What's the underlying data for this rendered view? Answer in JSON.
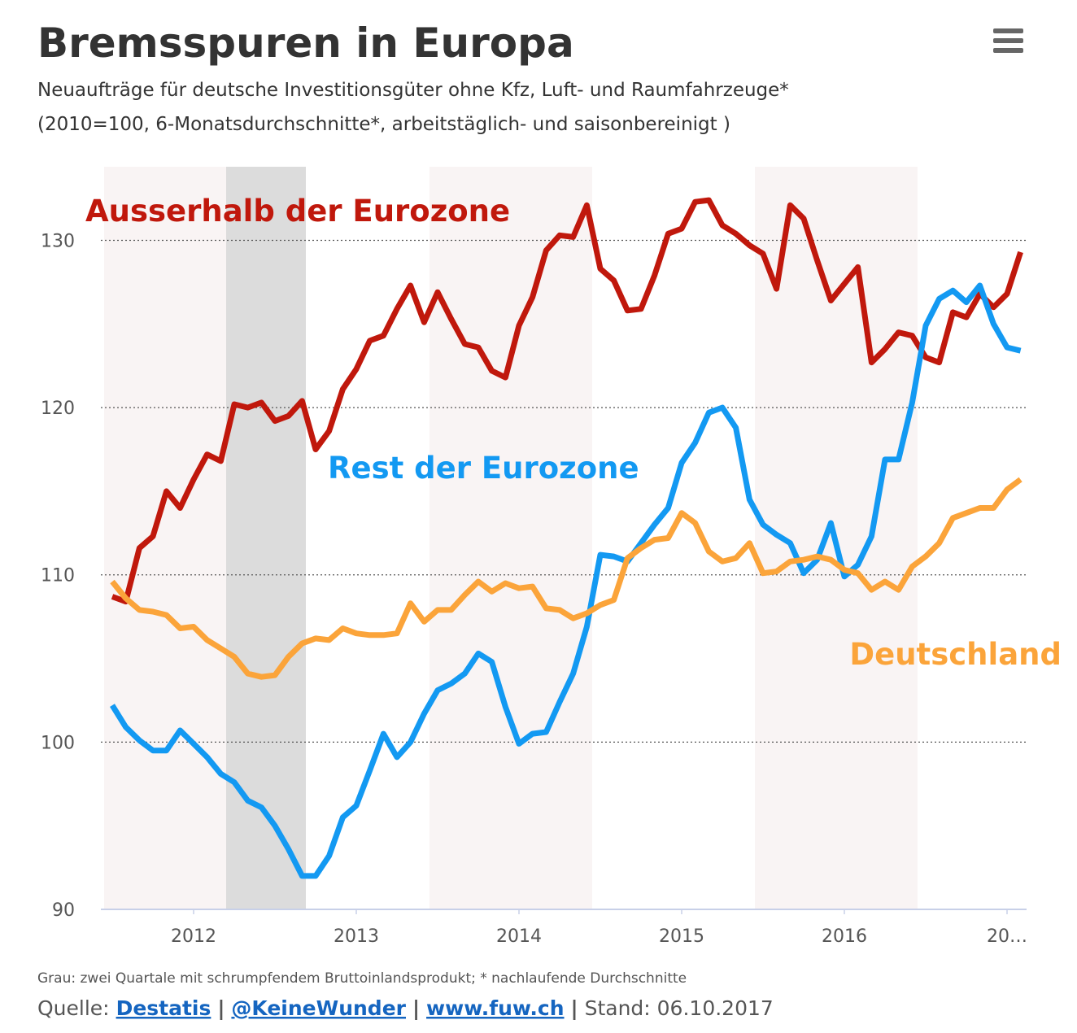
{
  "chart_data": {
    "type": "line",
    "title": "Bremsspuren in Europa",
    "subtitle": [
      "Neuaufträge für deutsche Investitionsgüter ohne Kfz, Luft- und Raumfahrzeuge*",
      "(2010=100, 6-Monatsdurchschnitte*, arbeitstäglich- und saisonbereinigt )"
    ],
    "x": [
      2011.5,
      2011.583,
      2011.667,
      2011.75,
      2011.833,
      2011.917,
      2012,
      2012.083,
      2012.167,
      2012.25,
      2012.333,
      2012.417,
      2012.5,
      2012.583,
      2012.667,
      2012.75,
      2012.833,
      2012.917,
      2013,
      2013.083,
      2013.167,
      2013.25,
      2013.333,
      2013.417,
      2013.5,
      2013.583,
      2013.667,
      2013.75,
      2013.833,
      2013.917,
      2014,
      2014.083,
      2014.167,
      2014.25,
      2014.333,
      2014.417,
      2014.5,
      2014.583,
      2014.667,
      2014.75,
      2014.833,
      2014.917,
      2015,
      2015.083,
      2015.167,
      2015.25,
      2015.333,
      2015.417,
      2015.5,
      2015.583,
      2015.667,
      2015.75,
      2015.833,
      2015.917,
      2016,
      2016.083,
      2016.167,
      2016.25,
      2016.333,
      2016.417,
      2016.5,
      2016.583,
      2016.667,
      2016.75,
      2016.833,
      2016.917,
      2017,
      2017.083
    ],
    "series": [
      {
        "name": "Ausserhalb der Eurozone",
        "color": "#c0180c",
        "values": [
          108.7,
          108.4,
          111.6,
          112.3,
          115.0,
          114.0,
          115.7,
          117.2,
          116.8,
          120.2,
          120.0,
          120.3,
          119.2,
          119.5,
          120.4,
          117.5,
          118.6,
          121.1,
          122.3,
          124.0,
          124.3,
          125.9,
          127.3,
          125.1,
          126.9,
          125.3,
          123.8,
          123.6,
          122.2,
          121.8,
          124.9,
          126.6,
          129.4,
          130.3,
          130.2,
          132.1,
          128.3,
          127.6,
          125.8,
          125.9,
          127.9,
          130.4,
          130.7,
          132.3,
          132.4,
          130.9,
          130.4,
          129.7,
          129.2,
          127.1,
          132.1,
          131.3,
          128.8,
          126.4,
          127.4,
          128.4,
          122.7,
          123.5,
          124.5,
          124.3,
          123.0,
          122.7,
          125.7,
          125.4,
          126.8,
          126.0,
          126.8,
          129.3
        ]
      },
      {
        "name": "Rest der Eurozone",
        "color": "#1399f2",
        "values": [
          102.2,
          100.9,
          100.1,
          99.5,
          99.5,
          100.7,
          99.9,
          99.1,
          98.1,
          97.6,
          96.5,
          96.1,
          95.0,
          93.6,
          92.0,
          92.0,
          93.2,
          95.5,
          96.2,
          98.3,
          100.5,
          99.1,
          100.0,
          101.7,
          103.1,
          103.5,
          104.1,
          105.3,
          104.8,
          102.1,
          99.9,
          100.5,
          100.6,
          102.4,
          104.1,
          106.9,
          111.2,
          111.1,
          110.8,
          111.9,
          113.0,
          114.0,
          116.7,
          117.9,
          119.7,
          120.0,
          118.8,
          114.5,
          113.0,
          112.4,
          111.9,
          110.1,
          110.9,
          113.1,
          109.9,
          110.6,
          112.3,
          116.9,
          116.9,
          120.3,
          124.9,
          126.5,
          127.0,
          126.3,
          127.3,
          125.0,
          123.6,
          123.4
        ]
      },
      {
        "name": "Deutschland",
        "color": "#fba43a",
        "values": [
          109.6,
          108.6,
          107.9,
          107.8,
          107.6,
          106.8,
          106.9,
          106.1,
          105.6,
          105.1,
          104.1,
          103.9,
          104.0,
          105.1,
          105.9,
          106.2,
          106.1,
          106.8,
          106.5,
          106.4,
          106.4,
          106.5,
          108.3,
          107.2,
          107.9,
          107.9,
          108.8,
          109.6,
          109.0,
          109.5,
          109.2,
          109.3,
          108.0,
          107.9,
          107.4,
          107.7,
          108.2,
          108.5,
          111.0,
          111.6,
          112.1,
          112.2,
          113.7,
          113.1,
          111.4,
          110.8,
          111.0,
          111.9,
          110.1,
          110.2,
          110.8,
          110.9,
          111.1,
          110.9,
          110.3,
          110.1,
          109.1,
          109.6,
          109.1,
          110.5,
          111.1,
          111.9,
          113.4,
          113.7,
          114.0,
          114.0,
          115.1,
          115.7
        ]
      }
    ],
    "xlim": [
      2011.45,
      2017.12
    ],
    "xticks": [
      2012,
      2013,
      2014,
      2015,
      2016,
      {
        "value": 2017,
        "label": "20…"
      }
    ],
    "ylim": [
      90,
      134.4
    ],
    "yticks": [
      90,
      100,
      110,
      120,
      130
    ],
    "grid": true,
    "shading": {
      "alternate": {
        "color": "#f9f4f4",
        "ranges": [
          [
            2011.45,
            2012.45
          ],
          [
            2013.45,
            2014.45
          ],
          [
            2015.45,
            2016.45
          ]
        ]
      },
      "recession": {
        "color": "#dcdcdc",
        "ranges": [
          [
            2012.2,
            2012.69
          ]
        ]
      }
    },
    "footnote": "Grau: zwei Quartale mit schrumpfendem Bruttoinlandsprodukt; * nachlaufende Durchschnitte",
    "source": {
      "label": "Quelle:",
      "links": [
        "Destatis",
        "@KeineWunder",
        "www.fuw.ch"
      ],
      "separator": "|",
      "stand": "Stand: 06.10.2017"
    }
  }
}
